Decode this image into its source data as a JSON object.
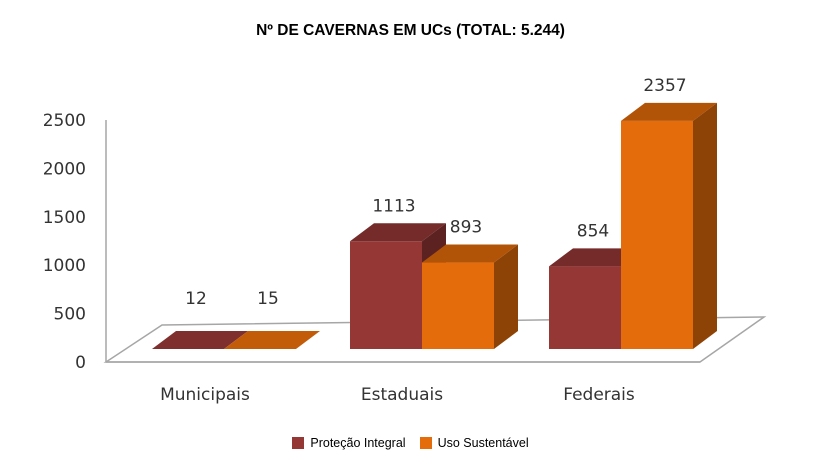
{
  "chart_data": {
    "type": "bar",
    "title": "Nº DE CAVERNAS EM UCs (TOTAL: 5.244)",
    "xlabel": "",
    "ylabel": "",
    "ylim": [
      0,
      2500
    ],
    "yticks": [
      "0",
      "500",
      "1000",
      "1500",
      "2000",
      "2500"
    ],
    "grid": false,
    "three_d": true,
    "legend_position": "bottom",
    "categories": [
      "Municipais",
      "Estaduais",
      "Federais"
    ],
    "series": [
      {
        "name": "Proteção Integral",
        "color": "#953735",
        "values": [
          12,
          1113,
          854
        ]
      },
      {
        "name": "Uso Sustentável",
        "color": "#E46C0A",
        "values": [
          15,
          893,
          2357
        ]
      }
    ],
    "data_labels": [
      [
        "12",
        "1113",
        "854"
      ],
      [
        "15",
        "893",
        "2357"
      ]
    ]
  },
  "legend": {
    "items": [
      {
        "label": "Proteção Integral",
        "color": "#953735"
      },
      {
        "label": "Uso Sustentável",
        "color": "#E46C0A"
      }
    ]
  }
}
